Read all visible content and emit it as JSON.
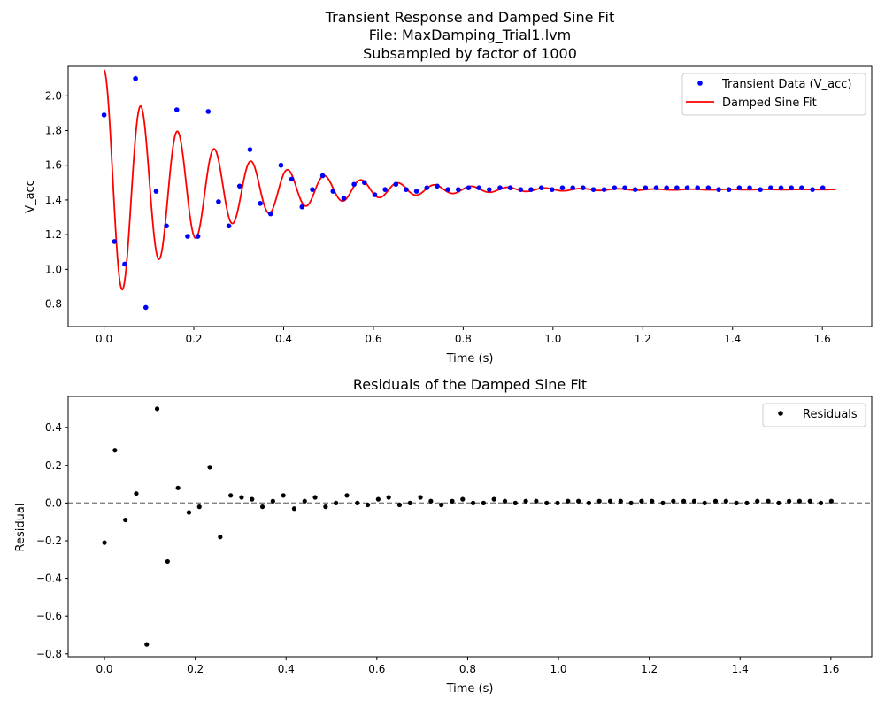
{
  "colors": {
    "data": "#0000ff",
    "fit": "#ff0000",
    "residual": "#000000",
    "zero_line": "#808080"
  },
  "chart_data": [
    {
      "type": "line",
      "title_lines": [
        "Transient Response and Damped Sine Fit",
        "File: MaxDamping_Trial1.lvm",
        "Subsampled by factor of 1000"
      ],
      "xlabel": "Time (s)",
      "ylabel": "V_acc",
      "xlim": [
        -0.08,
        1.71
      ],
      "ylim": [
        0.67,
        2.17
      ],
      "xticks": [
        0.0,
        0.2,
        0.4,
        0.6,
        0.8,
        1.0,
        1.2,
        1.4,
        1.6
      ],
      "xtick_labels": [
        "0.0",
        "0.2",
        "0.4",
        "0.6",
        "0.8",
        "1.0",
        "1.2",
        "1.4",
        "1.6"
      ],
      "yticks": [
        0.8,
        1.0,
        1.2,
        1.4,
        1.6,
        1.8,
        2.0
      ],
      "ytick_labels": [
        "0.8",
        "1.0",
        "1.2",
        "1.4",
        "1.6",
        "1.8",
        "2.0"
      ],
      "grid": false,
      "legend_position": "top-right",
      "series": [
        {
          "name": "Transient Data (V_acc)",
          "kind": "scatter",
          "x": [
            0.0,
            0.023,
            0.046,
            0.07,
            0.093,
            0.116,
            0.139,
            0.162,
            0.186,
            0.209,
            0.232,
            0.255,
            0.278,
            0.302,
            0.325,
            0.348,
            0.371,
            0.394,
            0.418,
            0.441,
            0.464,
            0.487,
            0.51,
            0.534,
            0.557,
            0.58,
            0.603,
            0.626,
            0.65,
            0.673,
            0.696,
            0.719,
            0.742,
            0.766,
            0.789,
            0.812,
            0.835,
            0.858,
            0.882,
            0.905,
            0.928,
            0.951,
            0.974,
            0.998,
            1.021,
            1.044,
            1.067,
            1.09,
            1.114,
            1.137,
            1.16,
            1.183,
            1.206,
            1.23,
            1.253,
            1.276,
            1.299,
            1.322,
            1.346,
            1.369,
            1.392,
            1.415,
            1.438,
            1.462,
            1.485,
            1.508,
            1.531,
            1.554,
            1.578,
            1.601
          ],
          "y": [
            1.89,
            1.16,
            1.03,
            2.1,
            0.78,
            1.45,
            1.25,
            1.92,
            1.19,
            1.19,
            1.91,
            1.39,
            1.25,
            1.48,
            1.69,
            1.38,
            1.32,
            1.6,
            1.52,
            1.36,
            1.46,
            1.54,
            1.45,
            1.41,
            1.49,
            1.5,
            1.43,
            1.46,
            1.49,
            1.46,
            1.45,
            1.47,
            1.48,
            1.46,
            1.46,
            1.47,
            1.47,
            1.46,
            1.47,
            1.47,
            1.46,
            1.46,
            1.47,
            1.46,
            1.47,
            1.47,
            1.47,
            1.46,
            1.46,
            1.47,
            1.47,
            1.46,
            1.47,
            1.47,
            1.47,
            1.47,
            1.47,
            1.47,
            1.47,
            1.46,
            1.46,
            1.47,
            1.47,
            1.46,
            1.47,
            1.47,
            1.47,
            1.47,
            1.46,
            1.47
          ]
        },
        {
          "name": "Damped Sine Fit",
          "kind": "line",
          "model": {
            "offset": 1.46,
            "amplitude": 0.69,
            "decay": 4.4,
            "omega": 76.8,
            "phase": 1.55,
            "t_min": 0.0,
            "t_max": 1.63
          }
        }
      ]
    },
    {
      "type": "scatter",
      "title": "Residuals of the Damped Sine Fit",
      "xlabel": "Time (s)",
      "ylabel": "Residual",
      "xlim": [
        -0.08,
        1.69
      ],
      "ylim": [
        -0.815,
        0.565
      ],
      "xticks": [
        0.0,
        0.2,
        0.4,
        0.6,
        0.8,
        1.0,
        1.2,
        1.4,
        1.6
      ],
      "xtick_labels": [
        "0.0",
        "0.2",
        "0.4",
        "0.6",
        "0.8",
        "1.0",
        "1.2",
        "1.4",
        "1.6"
      ],
      "yticks": [
        -0.8,
        -0.6,
        -0.4,
        -0.2,
        0.0,
        0.2,
        0.4
      ],
      "ytick_labels": [
        "−0.8",
        "−0.6",
        "−0.4",
        "−0.2",
        "0.0",
        "0.2",
        "0.4"
      ],
      "grid": false,
      "legend_position": "top-right",
      "reference_line_y": 0.0,
      "series": [
        {
          "name": "Residuals",
          "x": [
            0.0,
            0.023,
            0.046,
            0.07,
            0.093,
            0.116,
            0.139,
            0.162,
            0.186,
            0.209,
            0.232,
            0.255,
            0.278,
            0.302,
            0.325,
            0.348,
            0.371,
            0.394,
            0.418,
            0.441,
            0.464,
            0.487,
            0.51,
            0.534,
            0.557,
            0.58,
            0.603,
            0.626,
            0.65,
            0.673,
            0.696,
            0.719,
            0.742,
            0.766,
            0.789,
            0.812,
            0.835,
            0.858,
            0.882,
            0.905,
            0.928,
            0.951,
            0.974,
            0.998,
            1.021,
            1.044,
            1.067,
            1.09,
            1.114,
            1.137,
            1.16,
            1.183,
            1.206,
            1.23,
            1.253,
            1.276,
            1.299,
            1.322,
            1.346,
            1.369,
            1.392,
            1.415,
            1.438,
            1.462,
            1.485,
            1.508,
            1.531,
            1.554,
            1.578,
            1.601
          ],
          "y": [
            -0.21,
            0.28,
            -0.09,
            0.05,
            -0.75,
            0.5,
            -0.31,
            0.08,
            -0.05,
            -0.02,
            0.19,
            -0.18,
            0.04,
            0.03,
            0.02,
            -0.02,
            0.01,
            0.04,
            -0.03,
            0.01,
            0.03,
            -0.02,
            0.0,
            0.04,
            0.0,
            -0.01,
            0.02,
            0.03,
            -0.01,
            0.0,
            0.03,
            0.01,
            -0.01,
            0.01,
            0.02,
            0.0,
            0.0,
            0.02,
            0.01,
            0.0,
            0.01,
            0.01,
            0.0,
            0.0,
            0.01,
            0.01,
            0.0,
            0.01,
            0.01,
            0.01,
            0.0,
            0.01,
            0.01,
            0.0,
            0.01,
            0.01,
            0.01,
            0.0,
            0.01,
            0.01,
            0.0,
            0.0,
            0.01,
            0.01,
            0.0,
            0.01,
            0.01,
            0.01,
            0.0,
            0.01
          ]
        }
      ]
    }
  ]
}
